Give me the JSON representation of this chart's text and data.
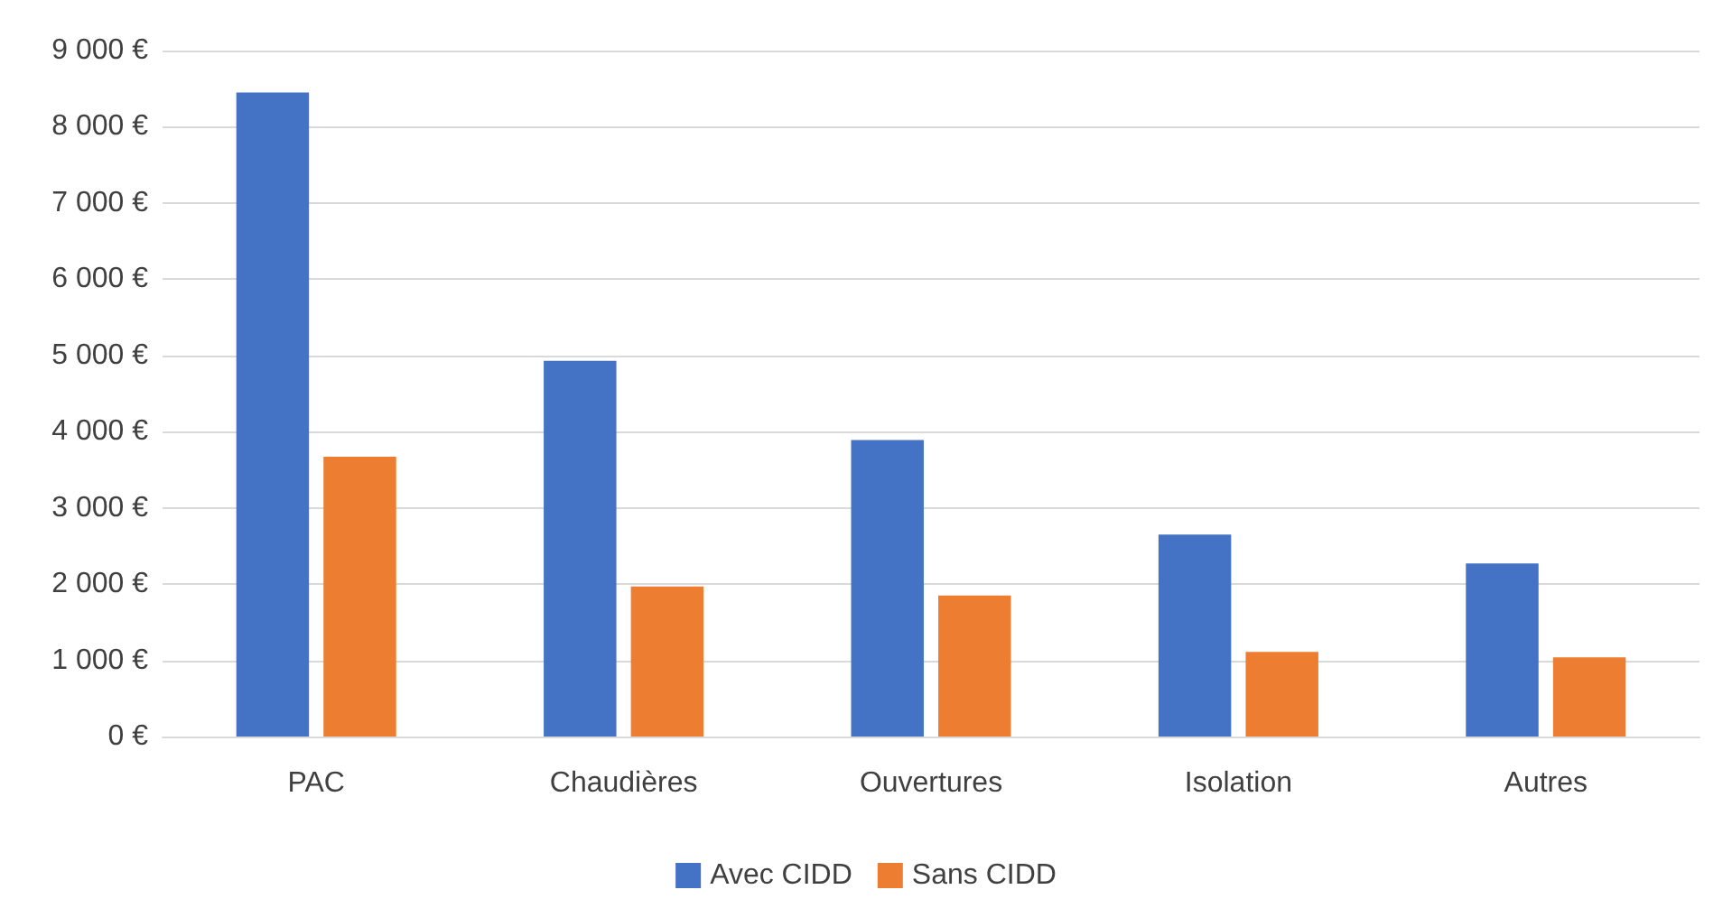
{
  "chart_data": {
    "type": "bar",
    "categories": [
      "PAC",
      "Chaudières",
      "Ouvertures",
      "Isolation",
      "Autres"
    ],
    "series": [
      {
        "name": "Avec CIDD",
        "color": "#4472c4",
        "values": [
          8450,
          4930,
          3890,
          2650,
          2270
        ]
      },
      {
        "name": "Sans CIDD",
        "color": "#ed7d31",
        "values": [
          3670,
          1970,
          1850,
          1110,
          1040
        ]
      }
    ],
    "ylim": [
      0,
      9000
    ],
    "yticks": [
      {
        "value": 0,
        "label": "0 €"
      },
      {
        "value": 1000,
        "label": "1 000 €"
      },
      {
        "value": 2000,
        "label": "2 000 €"
      },
      {
        "value": 3000,
        "label": "3 000 €"
      },
      {
        "value": 4000,
        "label": "4 000 €"
      },
      {
        "value": 5000,
        "label": "5 000 €"
      },
      {
        "value": 6000,
        "label": "6 000 €"
      },
      {
        "value": 7000,
        "label": "7 000 €"
      },
      {
        "value": 8000,
        "label": "8 000 €"
      },
      {
        "value": 9000,
        "label": "9 000 €"
      }
    ],
    "grid": "y",
    "legend": "bottom"
  }
}
